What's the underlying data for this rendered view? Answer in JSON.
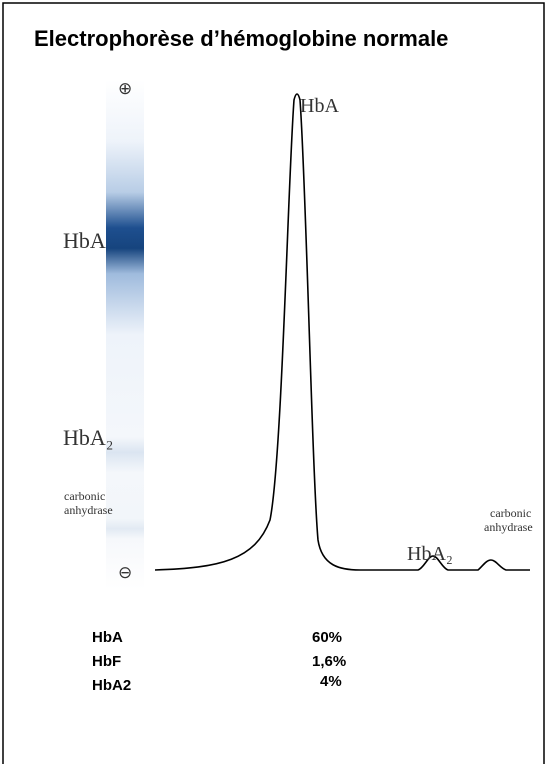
{
  "header": {
    "title": "Electrophorèse d’hémoglobine normale"
  },
  "gel": {
    "labels": {
      "anode": "⊕",
      "hba": "HbA",
      "hba2": "HbA₂",
      "ca_1": "carbonic",
      "ca_2": "anhydrase",
      "cathode": "⊖"
    }
  },
  "curve": {
    "labels": {
      "hba": "HbA",
      "hba2": "HbA₂",
      "ca_1": "carbonic",
      "ca_2": "anhydrase"
    }
  },
  "table": {
    "rows": [
      [
        "HbA",
        "60%"
      ],
      [
        "HbF",
        "1,6%"
      ],
      [
        "HbA2",
        "4%"
      ]
    ]
  }
}
